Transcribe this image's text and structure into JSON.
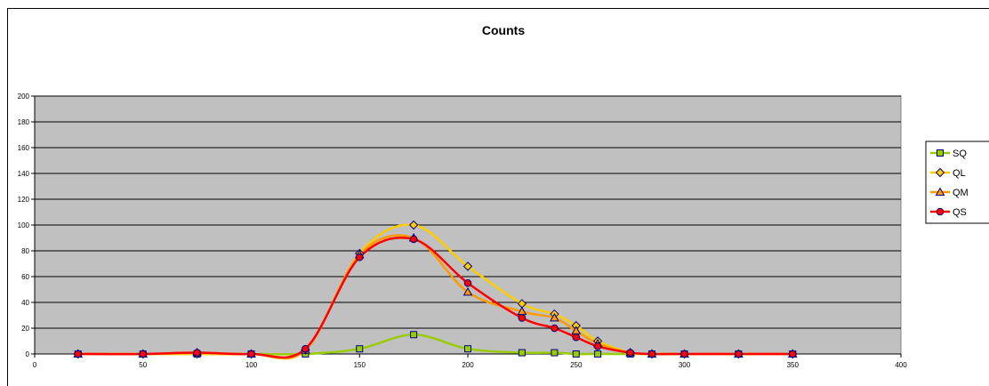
{
  "chart_data": {
    "type": "line",
    "title": "Counts",
    "xlabel": "",
    "ylabel": "",
    "xlim": [
      0,
      400
    ],
    "ylim": [
      0,
      200
    ],
    "x_ticks": [
      0,
      50,
      100,
      150,
      200,
      250,
      300,
      350,
      400
    ],
    "y_ticks": [
      0,
      20,
      40,
      60,
      80,
      100,
      120,
      140,
      160,
      180,
      200
    ],
    "grid": true,
    "legend_position": "right",
    "plot_background": "#c0c0c0",
    "series": [
      {
        "name": "SQ",
        "color": "#99cc00",
        "marker": "square",
        "marker_fill": "#99cc00",
        "x": [
          20,
          50,
          75,
          100,
          125,
          150,
          175,
          200,
          225,
          240,
          250,
          260,
          275,
          285,
          300,
          325,
          350
        ],
        "values": [
          0,
          0,
          0,
          0,
          0,
          4,
          15,
          4,
          1,
          1,
          0,
          0,
          0,
          0,
          0,
          0,
          0
        ]
      },
      {
        "name": "QL",
        "color": "#ffcc00",
        "marker": "diamond",
        "marker_fill": "#ffcc00",
        "x": [
          20,
          50,
          75,
          100,
          125,
          150,
          175,
          200,
          225,
          240,
          250,
          260,
          275,
          285,
          300,
          325,
          350
        ],
        "values": [
          0,
          0,
          0,
          0,
          3,
          78,
          100,
          68,
          39,
          31,
          22,
          10,
          1,
          0,
          0,
          0,
          0
        ]
      },
      {
        "name": "QM",
        "color": "#ff9900",
        "marker": "triangle",
        "marker_fill": "#ff9900",
        "x": [
          20,
          50,
          75,
          100,
          125,
          150,
          175,
          200,
          225,
          240,
          250,
          260,
          275,
          285,
          300,
          325,
          350
        ],
        "values": [
          0,
          0,
          1,
          0,
          3,
          77,
          90,
          48,
          33,
          28,
          18,
          8,
          1,
          0,
          0,
          0,
          0
        ]
      },
      {
        "name": "QS",
        "color": "#ff0000",
        "marker": "circle",
        "marker_fill": "#ff0000",
        "x": [
          20,
          50,
          75,
          100,
          125,
          150,
          175,
          200,
          225,
          240,
          250,
          260,
          275,
          285,
          300,
          325,
          350
        ],
        "values": [
          0,
          0,
          1,
          0,
          4,
          75,
          89,
          55,
          28,
          20,
          13,
          6,
          1,
          0,
          0,
          0,
          0
        ]
      }
    ]
  }
}
